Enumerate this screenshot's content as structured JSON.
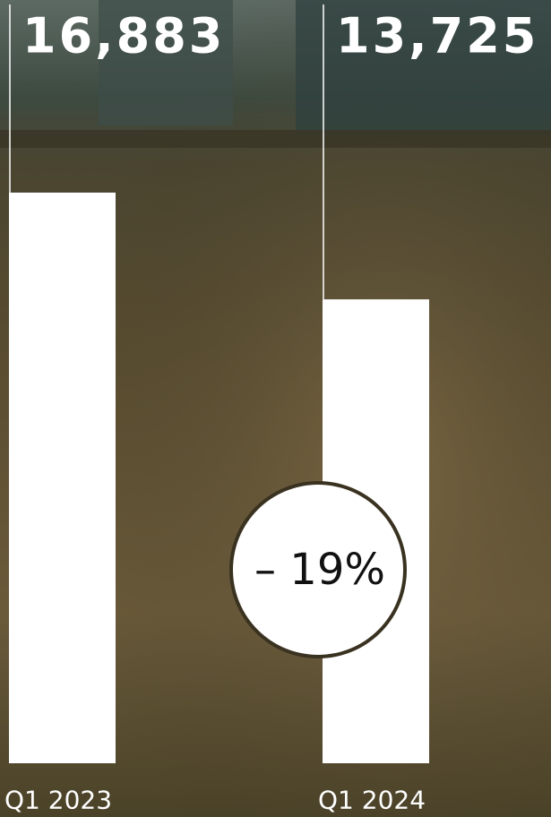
{
  "chart_data": {
    "type": "bar",
    "categories": [
      "Q1 2023",
      "Q1 2024"
    ],
    "values": [
      16883,
      13725
    ],
    "value_labels": [
      "16,883",
      "13,725"
    ],
    "color": "#ffffff",
    "annotation": "– 19%"
  }
}
